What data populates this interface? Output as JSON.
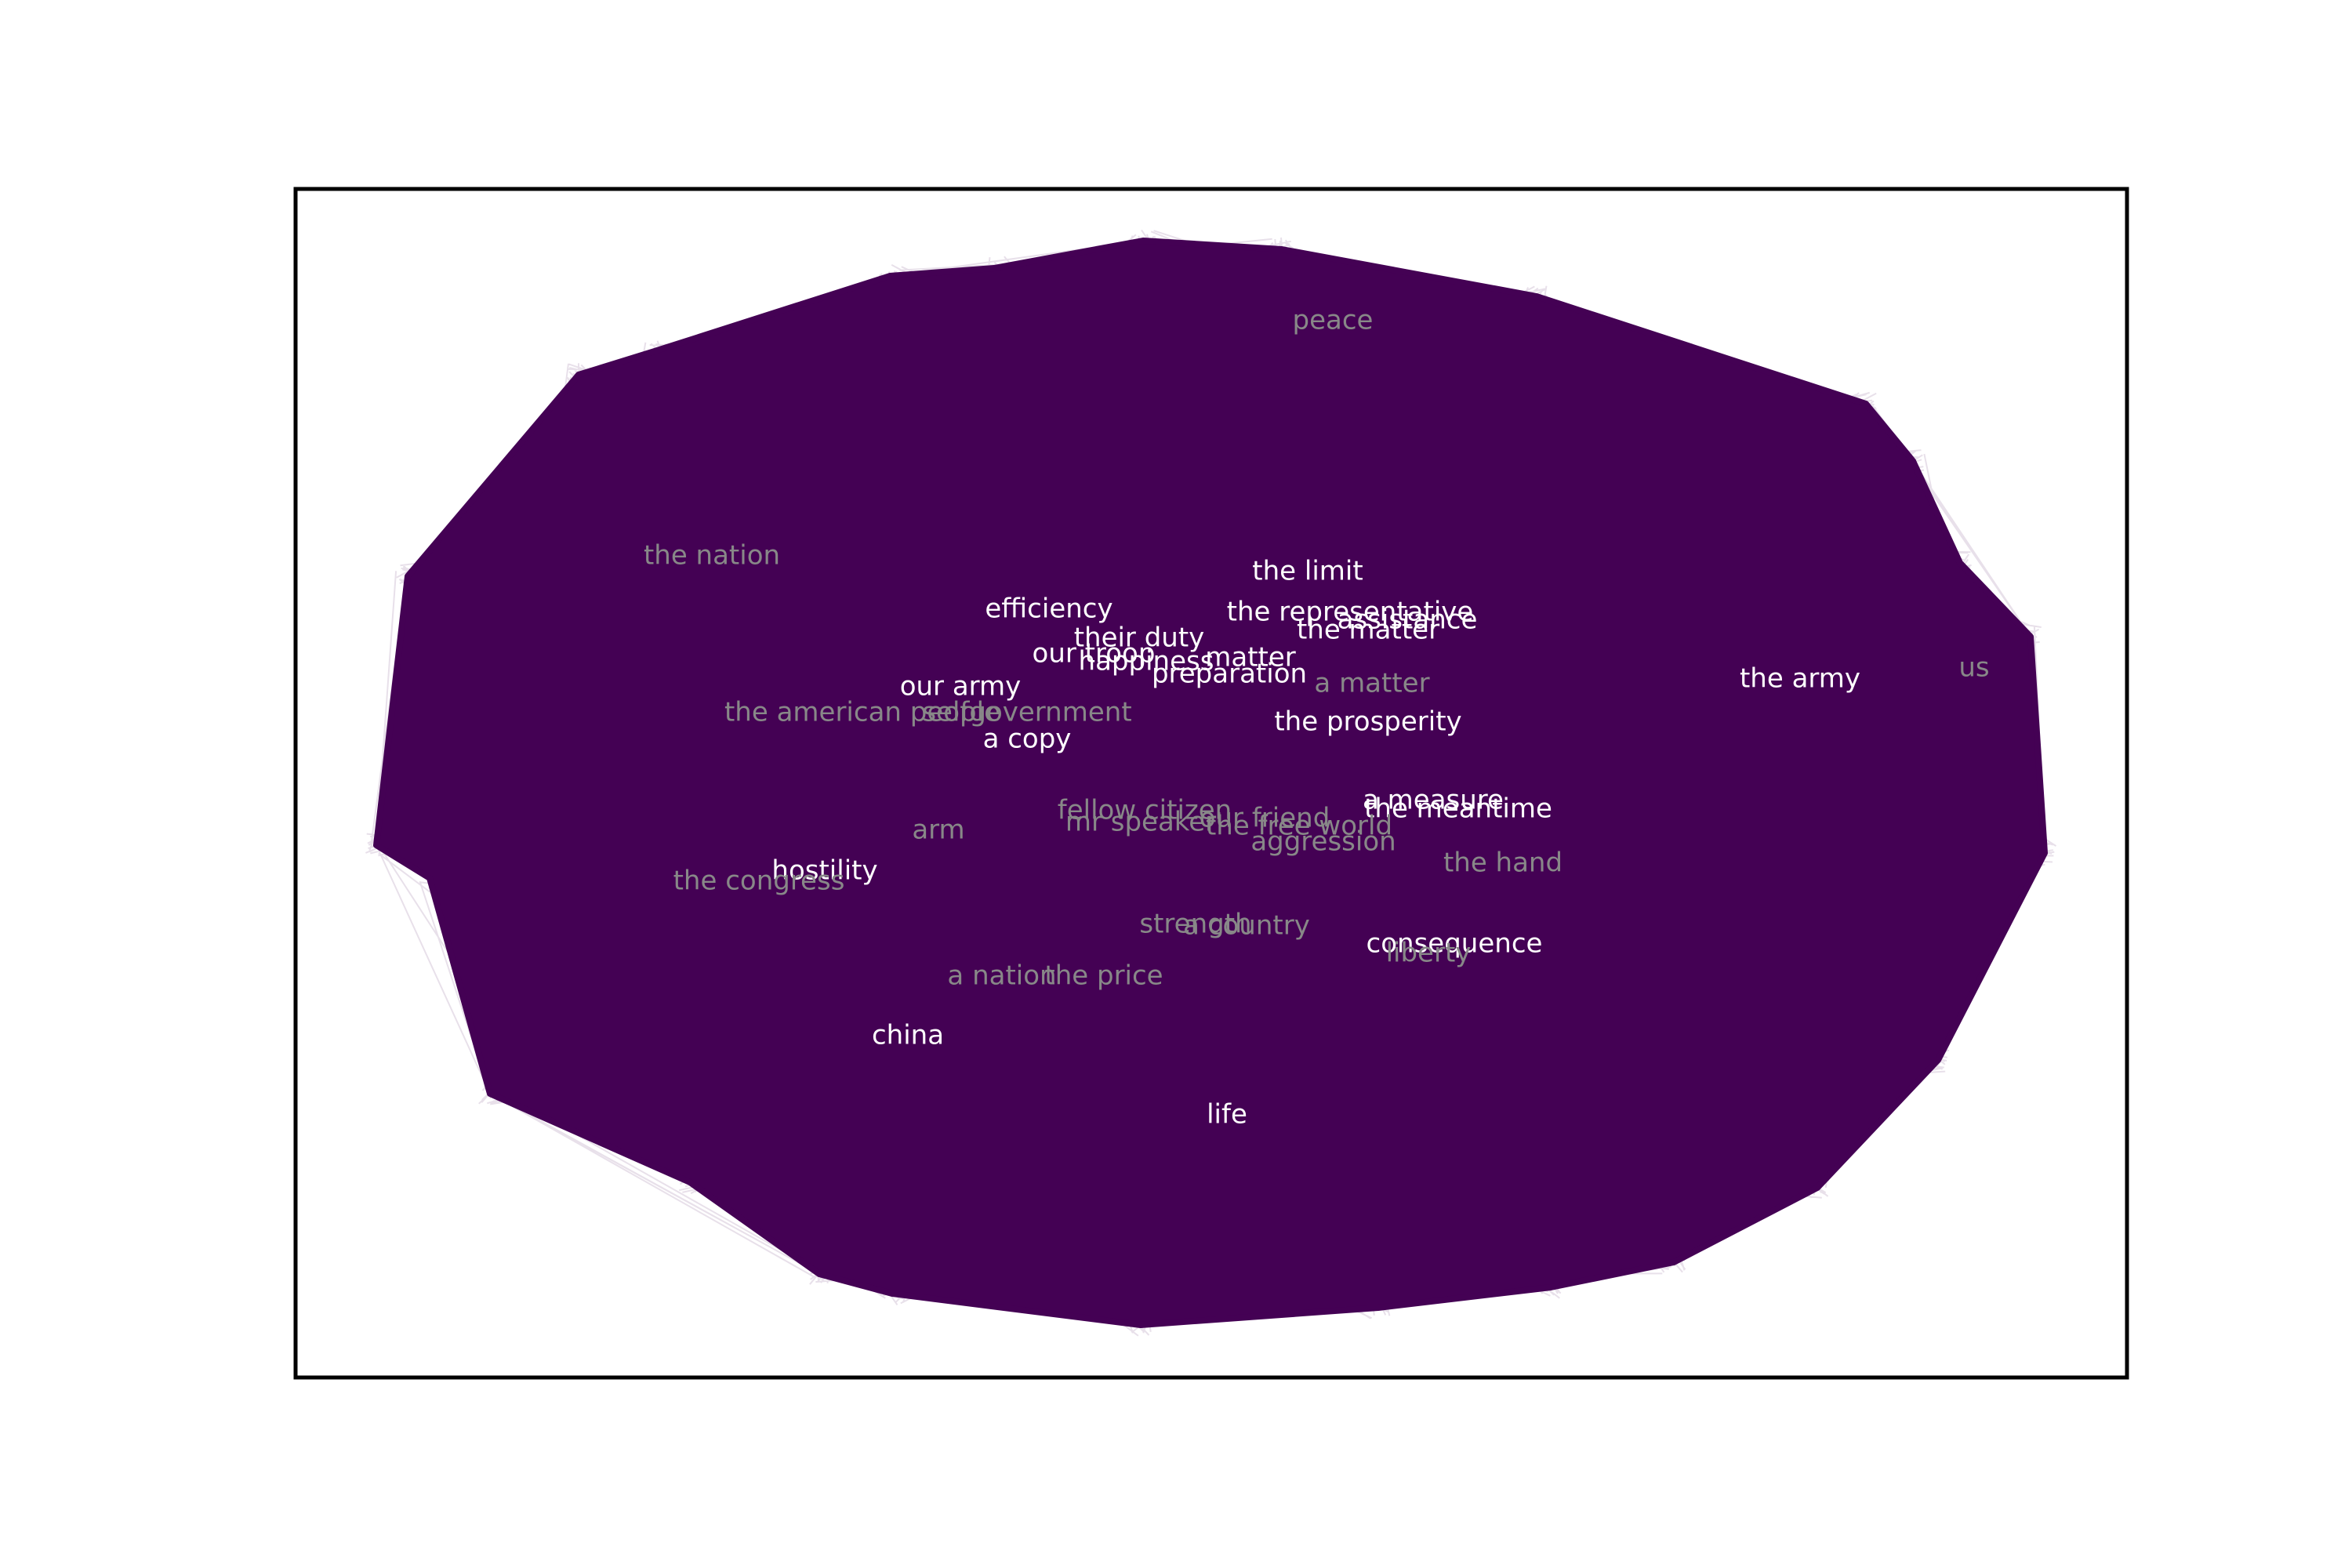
{
  "colors": {
    "edge": "#440154",
    "frame": "#000000",
    "label_primary": "#ffffff",
    "label_secondary": "#888888",
    "background": "#ffffff"
  },
  "chart_data": {
    "type": "network",
    "grid": false,
    "legend": "none",
    "nodes": [
      {
        "label": "peace",
        "tone": "secondary"
      },
      {
        "label": "the nation",
        "tone": "secondary"
      },
      {
        "label": "the limit",
        "tone": "primary"
      },
      {
        "label": "efficiency",
        "tone": "primary"
      },
      {
        "label": "the representative",
        "tone": "primary"
      },
      {
        "label": "assistance",
        "tone": "primary"
      },
      {
        "label": "the matter",
        "tone": "primary"
      },
      {
        "label": "their duty",
        "tone": "primary"
      },
      {
        "label": "our troop",
        "tone": "primary"
      },
      {
        "label": "happiness",
        "tone": "primary"
      },
      {
        "label": "matter",
        "tone": "primary"
      },
      {
        "label": "preparation",
        "tone": "primary"
      },
      {
        "label": "a matter",
        "tone": "secondary"
      },
      {
        "label": "us",
        "tone": "secondary"
      },
      {
        "label": "the army",
        "tone": "primary"
      },
      {
        "label": "our army",
        "tone": "primary"
      },
      {
        "label": "the american people",
        "tone": "secondary"
      },
      {
        "label": "selfgovernment",
        "tone": "secondary"
      },
      {
        "label": "a copy",
        "tone": "primary"
      },
      {
        "label": "the prosperity",
        "tone": "primary"
      },
      {
        "label": "a measure",
        "tone": "primary"
      },
      {
        "label": "the meantime",
        "tone": "primary"
      },
      {
        "label": "fellow citizen",
        "tone": "secondary"
      },
      {
        "label": "mr speaker",
        "tone": "secondary"
      },
      {
        "label": "our friend",
        "tone": "secondary"
      },
      {
        "label": "the free world",
        "tone": "secondary"
      },
      {
        "label": "arm",
        "tone": "secondary"
      },
      {
        "label": "aggression",
        "tone": "secondary"
      },
      {
        "label": "the hand",
        "tone": "secondary"
      },
      {
        "label": "hostility",
        "tone": "primary"
      },
      {
        "label": "the congress",
        "tone": "secondary"
      },
      {
        "label": "strength",
        "tone": "secondary"
      },
      {
        "label": "a country",
        "tone": "secondary"
      },
      {
        "label": "consequence",
        "tone": "primary"
      },
      {
        "label": "liberty",
        "tone": "secondary"
      },
      {
        "label": "a nation",
        "tone": "secondary"
      },
      {
        "label": "the price",
        "tone": "secondary"
      },
      {
        "label": "china",
        "tone": "primary"
      },
      {
        "label": "life",
        "tone": "primary"
      }
    ]
  }
}
